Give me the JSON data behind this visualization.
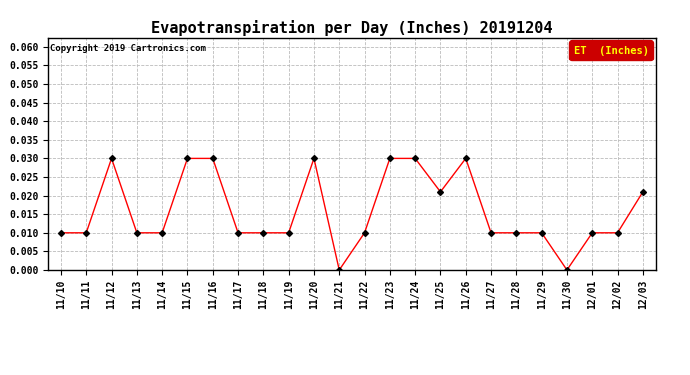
{
  "title": "Evapotranspiration per Day (Inches) 20191204",
  "copyright": "Copyright 2019 Cartronics.com",
  "legend_label": "ET  (Inches)",
  "legend_bg": "#CC0000",
  "legend_text_color": "#FFFF00",
  "dates": [
    "11/10",
    "11/11",
    "11/12",
    "11/13",
    "11/14",
    "11/15",
    "11/16",
    "11/17",
    "11/18",
    "11/19",
    "11/20",
    "11/21",
    "11/22",
    "11/23",
    "11/24",
    "11/25",
    "11/26",
    "11/27",
    "11/28",
    "11/29",
    "11/30",
    "12/01",
    "12/02",
    "12/03"
  ],
  "values": [
    0.01,
    0.01,
    0.03,
    0.01,
    0.01,
    0.03,
    0.03,
    0.01,
    0.01,
    0.01,
    0.03,
    0.0,
    0.01,
    0.03,
    0.03,
    0.021,
    0.03,
    0.01,
    0.01,
    0.01,
    0.0,
    0.01,
    0.01,
    0.021
  ],
  "line_color": "#FF0000",
  "marker_color": "#000000",
  "ylim": [
    0.0,
    0.0625
  ],
  "yticks": [
    0.0,
    0.005,
    0.01,
    0.015,
    0.02,
    0.025,
    0.03,
    0.035,
    0.04,
    0.045,
    0.05,
    0.055,
    0.06
  ],
  "bg_color": "#FFFFFF",
  "grid_color": "#BBBBBB",
  "title_fontsize": 11,
  "tick_fontsize": 7,
  "copyright_fontsize": 6.5
}
